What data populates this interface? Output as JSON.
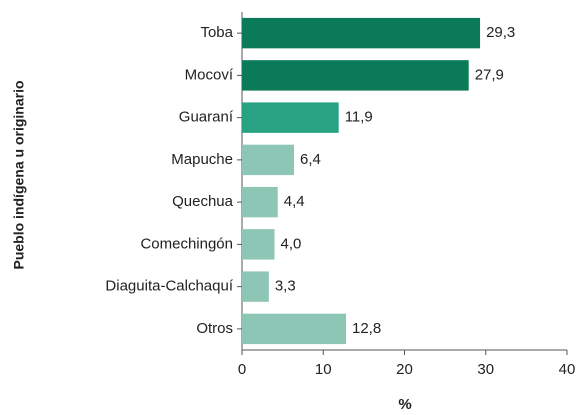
{
  "chart_data": {
    "type": "barh",
    "ylabel": "Pueblo indígena u originario",
    "xlabel": "%",
    "categories": [
      "Toba",
      "Mocoví",
      "Guaraní",
      "Mapuche",
      "Quechua",
      "Comechingón",
      "Diaguita-Calchaquí",
      "Otros"
    ],
    "values": [
      29.3,
      27.9,
      11.9,
      6.4,
      4.4,
      4.0,
      3.3,
      12.8
    ],
    "value_labels": [
      "29,3",
      "27,9",
      "11,9",
      "6,4",
      "4,4",
      "4,0",
      "3,3",
      "12,8"
    ],
    "colors": [
      "#0b7a58",
      "#0b7a58",
      "#27a384",
      "#8dc6b5",
      "#8dc6b5",
      "#8dc6b5",
      "#8dc6b5",
      "#8dc6b5"
    ],
    "xlim": [
      0,
      40
    ],
    "xticks": [
      0,
      10,
      20,
      30,
      40
    ]
  }
}
